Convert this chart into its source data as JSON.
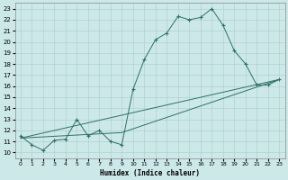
{
  "xlabel": "Humidex (Indice chaleur)",
  "background_color": "#cde8e8",
  "grid_color": "#aacccc",
  "line_color": "#2d7068",
  "xlim": [
    -0.5,
    23.5
  ],
  "ylim": [
    9.5,
    23.5
  ],
  "xticks": [
    0,
    1,
    2,
    3,
    4,
    5,
    6,
    7,
    8,
    9,
    10,
    11,
    12,
    13,
    14,
    15,
    16,
    17,
    18,
    19,
    20,
    21,
    22,
    23
  ],
  "yticks": [
    10,
    11,
    12,
    13,
    14,
    15,
    16,
    17,
    18,
    19,
    20,
    21,
    22,
    23
  ],
  "main_x": [
    0,
    1,
    2,
    3,
    4,
    5,
    6,
    7,
    8,
    9,
    10,
    11,
    12,
    13,
    14,
    15,
    16,
    17,
    18,
    19,
    20,
    21,
    22,
    23
  ],
  "main_y": [
    11.5,
    10.7,
    10.2,
    11.1,
    11.2,
    13.0,
    11.5,
    12.0,
    11.0,
    10.7,
    15.7,
    18.4,
    20.2,
    20.8,
    22.3,
    22.0,
    22.2,
    23.0,
    21.5,
    19.2,
    18.0,
    16.1,
    16.1,
    16.6
  ],
  "trend1_x": [
    0,
    23
  ],
  "trend1_y": [
    11.3,
    16.6
  ],
  "trend2_x": [
    0,
    9,
    23
  ],
  "trend2_y": [
    11.3,
    11.8,
    16.6
  ]
}
